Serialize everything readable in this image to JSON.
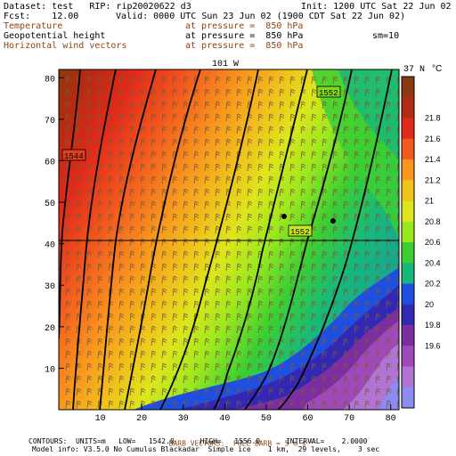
{
  "header": {
    "dataset": "Dataset: test   RIP: rip20020622 d3",
    "fcst": "Fcst:    12.00",
    "init": "Init: 1200 UTC Sat 22 Jun 02",
    "valid": "Valid: 0000 UTC Sun 23 Jun 02 (1900 CDT Sat 22 Jun 02)",
    "fields": [
      {
        "name": "Temperature",
        "level": "at pressure =  850 hPa",
        "color": "#8b4513"
      },
      {
        "name": "Geopotential height",
        "level": "at pressure =  850 hPa",
        "color": "#000000"
      },
      {
        "name": "Horizontal wind vectors",
        "level": "at pressure =  850 hPa",
        "color": "#8b4513"
      }
    ],
    "smoothing": "sm=10"
  },
  "map": {
    "top_label_lon": "101 W",
    "right_label_lat": "37 N"
  },
  "colorbar": {
    "unit": "°C",
    "levels": [
      "21.8",
      "21.6",
      "21.4",
      "21.2",
      "21",
      "20.8",
      "20.6",
      "20.4",
      "20.2",
      "20",
      "19.8",
      "19.6"
    ],
    "colors": [
      "#8b3a0e",
      "#b22b12",
      "#e32a1a",
      "#f25a1e",
      "#f8961e",
      "#f0c21c",
      "#dce61c",
      "#9ae81e",
      "#3ccf32",
      "#17b87c",
      "#1e4fe0",
      "#3228b4",
      "#7c2ea0",
      "#a04ab9",
      "#b074d2",
      "#8c8cf0"
    ]
  },
  "footer": {
    "barb_line": "BARB VECTORS:  FULL BARB = 5 m s",
    "barb_exp": "-1",
    "contour_line": "CONTOURS:  UNITS=m   LOW=   1542.0      HIGH=   1556.0      INTERVAL=    2.0000",
    "model_line": "Model info: V3.5.0 No Cumulus Blackadar  Simple ice    1 km,  29 levels,    3 sec"
  },
  "chart_data": {
    "type": "heatmap",
    "description_fields": [
      "Temperature (°C)",
      "Geopotential height contours (m)",
      "Horizontal wind barbs"
    ],
    "x_ticks": [
      10,
      20,
      30,
      40,
      50,
      60,
      70,
      80
    ],
    "y_ticks": [
      10,
      20,
      30,
      40,
      50,
      60,
      70,
      80
    ],
    "xlim": [
      0,
      82
    ],
    "ylim": [
      0,
      82
    ],
    "temperature_range": [
      19.6,
      21.8
    ],
    "temperature_interval": 0.2,
    "height_contour_labels": [
      {
        "value": "1544",
        "x": 3,
        "y": 61
      },
      {
        "value": "1552",
        "x": 62,
        "y": 77
      },
      {
        "value": "1552",
        "x": 57,
        "y": 44
      }
    ],
    "contour_low": 1542.0,
    "contour_high": 1556.0,
    "contour_interval": 2.0,
    "station_points": [
      [
        54,
        47
      ],
      [
        66,
        45
      ]
    ],
    "reference_line_lat_y": 41
  }
}
